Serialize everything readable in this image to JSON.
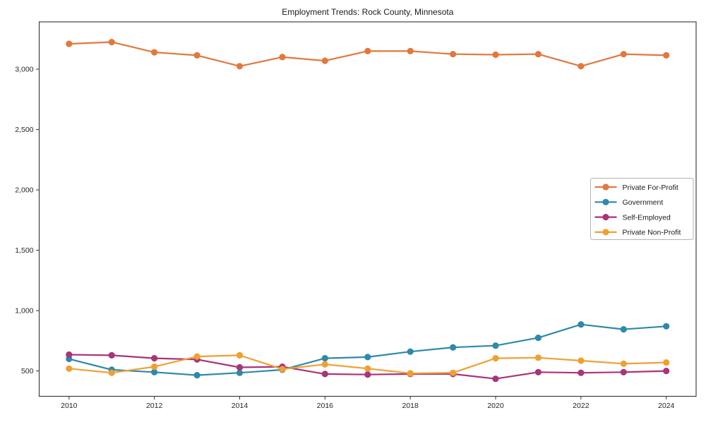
{
  "chart_data": {
    "type": "line",
    "title": "Employment Trends: Rock County, Minnesota",
    "grid": false,
    "legend_position": "center right",
    "marker": "circle",
    "frame_color": "#333333",
    "x": [
      2010,
      2011,
      2012,
      2013,
      2014,
      2015,
      2016,
      2017,
      2018,
      2019,
      2020,
      2021,
      2022,
      2023,
      2024
    ],
    "xlim": [
      2009.3,
      2024.7
    ],
    "ylim": [
      290,
      3392
    ],
    "xticks": [
      {
        "value": 2010,
        "label": "2010"
      },
      {
        "value": 2012,
        "label": "2012"
      },
      {
        "value": 2014,
        "label": "2014"
      },
      {
        "value": 2016,
        "label": "2016"
      },
      {
        "value": 2018,
        "label": "2018"
      },
      {
        "value": 2020,
        "label": "2020"
      },
      {
        "value": 2022,
        "label": "2022"
      },
      {
        "value": 2024,
        "label": "2024"
      }
    ],
    "yticks": [
      {
        "value": 500,
        "label": "500"
      },
      {
        "value": 1000,
        "label": "1,000"
      },
      {
        "value": 1500,
        "label": "1,500"
      },
      {
        "value": 2000,
        "label": "2,000"
      },
      {
        "value": 2500,
        "label": "2,500"
      },
      {
        "value": 3000,
        "label": "3,000"
      }
    ],
    "series": [
      {
        "name": "Private For-Profit",
        "color": "#e1793d",
        "values": [
          3210,
          3225,
          3140,
          3115,
          3025,
          3100,
          3070,
          3150,
          3150,
          3125,
          3120,
          3125,
          3025,
          3125,
          3115
        ]
      },
      {
        "name": "Government",
        "color": "#2e89aa",
        "values": [
          600,
          510,
          490,
          465,
          485,
          510,
          605,
          615,
          660,
          695,
          710,
          775,
          885,
          845,
          870
        ]
      },
      {
        "name": "Self-Employed",
        "color": "#a83479",
        "values": [
          635,
          630,
          605,
          595,
          530,
          535,
          475,
          470,
          475,
          475,
          435,
          490,
          485,
          490,
          500
        ]
      },
      {
        "name": "Private Non-Profit",
        "color": "#f0a033",
        "values": [
          520,
          485,
          535,
          620,
          630,
          515,
          555,
          520,
          480,
          485,
          605,
          610,
          585,
          560,
          570
        ]
      }
    ]
  }
}
